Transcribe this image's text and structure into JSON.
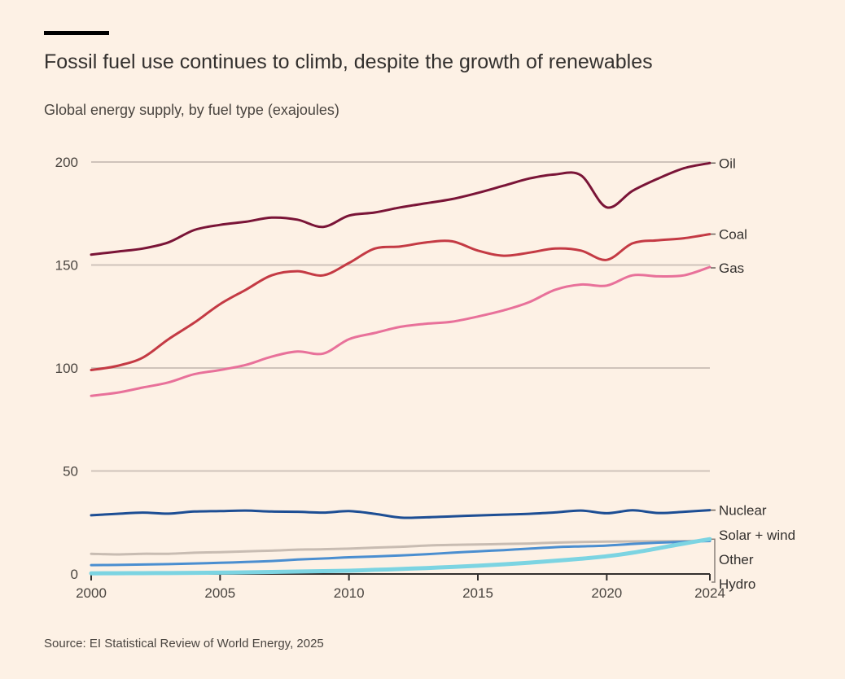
{
  "chart_data": {
    "type": "line",
    "title": "Fossil fuel use continues to climb, despite the growth of renewables",
    "subtitle": "Global energy supply, by fuel type (exajoules)",
    "source": "Source: EI Statistical Review of World Energy, 2025",
    "xlabel": "",
    "ylabel": "",
    "xlim": [
      2000,
      2024
    ],
    "ylim": [
      0,
      200
    ],
    "x_ticks": [
      "2000",
      "2005",
      "2010",
      "2015",
      "2020",
      "2024"
    ],
    "y_ticks": [
      "0",
      "50",
      "100",
      "150",
      "200"
    ],
    "grid": true,
    "x": [
      2000,
      2001,
      2002,
      2003,
      2004,
      2005,
      2006,
      2007,
      2008,
      2009,
      2010,
      2011,
      2012,
      2013,
      2014,
      2015,
      2016,
      2017,
      2018,
      2019,
      2020,
      2021,
      2022,
      2023,
      2024
    ],
    "series": [
      {
        "name": "Oil",
        "color": "#7a1437",
        "values": [
          155,
          156.5,
          158,
          161,
          167,
          169.5,
          171,
          173,
          172,
          168.5,
          174,
          175.5,
          178,
          180,
          182,
          185,
          188.5,
          192,
          194,
          193.5,
          178,
          186,
          192,
          197,
          199.5
        ]
      },
      {
        "name": "Coal",
        "color": "#c43a44",
        "values": [
          99,
          101,
          105,
          114,
          122,
          131,
          138,
          145,
          147,
          145,
          151,
          158,
          159,
          161,
          161.5,
          157,
          154.5,
          156,
          158,
          157,
          152.5,
          160.5,
          162,
          163,
          165
        ]
      },
      {
        "name": "Gas",
        "color": "#e8719a",
        "values": [
          86.5,
          88,
          90.5,
          93,
          97,
          99,
          101.5,
          105.5,
          108,
          107,
          114,
          117,
          120,
          121.5,
          122.5,
          125,
          128,
          132,
          138,
          140.5,
          140,
          145,
          144.5,
          145,
          149
        ]
      },
      {
        "name": "Nuclear",
        "color": "#1d4e94",
        "values": [
          28.5,
          29.2,
          29.8,
          29.3,
          30.3,
          30.5,
          30.8,
          30.3,
          30.2,
          29.8,
          30.5,
          29.2,
          27.4,
          27.5,
          28.0,
          28.4,
          28.8,
          29.2,
          29.9,
          30.8,
          29.5,
          30.9,
          29.6,
          30.2,
          31.0
        ]
      },
      {
        "name": "Hydro",
        "color": "#4a8ed0",
        "values": [
          4.3,
          4.4,
          4.6,
          4.8,
          5.1,
          5.4,
          5.8,
          6.3,
          7.0,
          7.5,
          8.1,
          8.5,
          9.0,
          9.6,
          10.3,
          11.0,
          11.6,
          12.3,
          13.0,
          13.4,
          13.8,
          14.6,
          15.2,
          15.6,
          16.0
        ]
      },
      {
        "name": "Other",
        "color": "#c8bcb2",
        "values": [
          9.8,
          9.5,
          9.8,
          9.8,
          10.3,
          10.6,
          11.0,
          11.3,
          11.8,
          12.0,
          12.3,
          12.8,
          13.2,
          13.8,
          14.1,
          14.3,
          14.6,
          14.8,
          15.2,
          15.5,
          15.7,
          15.8,
          15.9,
          16.0,
          16.3
        ]
      },
      {
        "name": "Solar + wind",
        "color": "#7cd4e2",
        "values": [
          0.3,
          0.35,
          0.4,
          0.45,
          0.55,
          0.65,
          0.8,
          1.0,
          1.2,
          1.4,
          1.6,
          2.0,
          2.4,
          2.9,
          3.4,
          4.0,
          4.7,
          5.5,
          6.4,
          7.4,
          8.6,
          10.3,
          12.5,
          14.8,
          16.9
        ]
      }
    ],
    "end_labels": [
      "Oil",
      "Coal",
      "Gas",
      "Nuclear",
      "Solar + wind",
      "Other",
      "Hydro"
    ]
  },
  "colors": {
    "background": "#fdf1e5",
    "gridline": "#cfc3ba",
    "axis": "#33302e",
    "accent_bar": "#000000"
  }
}
